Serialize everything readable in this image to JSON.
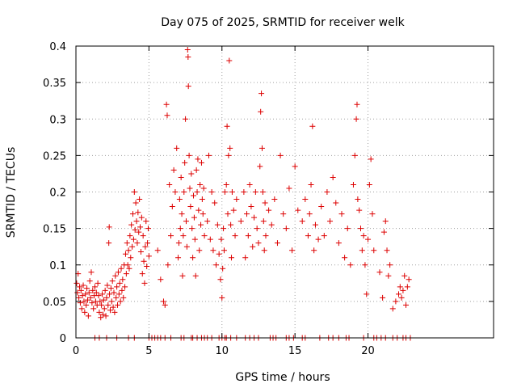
{
  "chart_data": {
    "type": "scatter",
    "title": "Day 075 of 2025, SRMTID for receiver welk",
    "xlabel": "GPS time / hours",
    "ylabel": "SRMTID / TECUs",
    "xlim": [
      0,
      28.6
    ],
    "ylim": [
      0,
      0.4
    ],
    "x_ticks": [
      0,
      5,
      10,
      15,
      20
    ],
    "x_tick_labels": [
      "0",
      "5",
      "10",
      "15",
      "20"
    ],
    "y_ticks": [
      0,
      0.05,
      0.1,
      0.15,
      0.2,
      0.25,
      0.3,
      0.35,
      0.4
    ],
    "y_tick_labels": [
      "0",
      "0.05",
      "0.1",
      "0.15",
      "0.2",
      "0.25",
      "0.3",
      "0.35",
      "0.4"
    ],
    "grid": true,
    "marker": "+",
    "series": [
      {
        "name": "SRMTID",
        "color": "#dd0000",
        "points": [
          [
            0.05,
            0.075
          ],
          [
            0.1,
            0.062
          ],
          [
            0.15,
            0.088
          ],
          [
            0.2,
            0.055
          ],
          [
            0.25,
            0.07
          ],
          [
            0.3,
            0.048
          ],
          [
            0.35,
            0.065
          ],
          [
            0.4,
            0.04
          ],
          [
            0.45,
            0.058
          ],
          [
            0.5,
            0.072
          ],
          [
            0.55,
            0.05
          ],
          [
            0.6,
            0.035
          ],
          [
            0.65,
            0.06
          ],
          [
            0.7,
            0.045
          ],
          [
            0.75,
            0.068
          ],
          [
            0.8,
            0.052
          ],
          [
            0.85,
            0.03
          ],
          [
            0.9,
            0.062
          ],
          [
            0.95,
            0.078
          ],
          [
            1.0,
            0.055
          ],
          [
            1.05,
            0.09
          ],
          [
            1.1,
            0.048
          ],
          [
            1.15,
            0.065
          ],
          [
            1.2,
            0.04
          ],
          [
            1.25,
            0.058
          ],
          [
            1.3,
            0.07
          ],
          [
            1.35,
            0.05
          ],
          [
            1.4,
            0.062
          ],
          [
            1.45,
            0.045
          ],
          [
            1.5,
            0.075
          ],
          [
            1.55,
            0.058
          ],
          [
            1.6,
            0.035
          ],
          [
            1.65,
            0.05
          ],
          [
            1.7,
            0.028
          ],
          [
            1.75,
            0.045
          ],
          [
            1.8,
            0.06
          ],
          [
            1.85,
            0.032
          ],
          [
            1.9,
            0.052
          ],
          [
            1.95,
            0.04
          ],
          [
            2.0,
            0.065
          ],
          [
            2.05,
            0.03
          ],
          [
            2.1,
            0.055
          ],
          [
            2.15,
            0.072
          ],
          [
            2.2,
            0.045
          ],
          [
            2.25,
            0.13
          ],
          [
            2.28,
            0.152
          ],
          [
            2.3,
            0.06
          ],
          [
            2.35,
            0.038
          ],
          [
            2.4,
            0.068
          ],
          [
            2.45,
            0.05
          ],
          [
            2.5,
            0.078
          ],
          [
            2.55,
            0.042
          ],
          [
            2.6,
            0.062
          ],
          [
            2.65,
            0.035
          ],
          [
            2.7,
            0.085
          ],
          [
            2.75,
            0.055
          ],
          [
            2.8,
            0.07
          ],
          [
            2.85,
            0.045
          ],
          [
            2.9,
            0.09
          ],
          [
            2.95,
            0.06
          ],
          [
            3.0,
            0.075
          ],
          [
            3.05,
            0.05
          ],
          [
            3.1,
            0.095
          ],
          [
            3.15,
            0.065
          ],
          [
            3.2,
            0.08
          ],
          [
            3.25,
            0.055
          ],
          [
            3.3,
            0.1
          ],
          [
            3.35,
            0.07
          ],
          [
            3.4,
            0.115
          ],
          [
            3.45,
            0.088
          ],
          [
            3.5,
            0.13
          ],
          [
            3.55,
            0.1
          ],
          [
            3.6,
            0.12
          ],
          [
            3.65,
            0.095
          ],
          [
            3.7,
            0.14
          ],
          [
            3.75,
            0.11
          ],
          [
            3.8,
            0.155
          ],
          [
            3.85,
            0.125
          ],
          [
            3.9,
            0.17
          ],
          [
            3.95,
            0.135
          ],
          [
            4.0,
            0.2
          ],
          [
            4.05,
            0.148
          ],
          [
            4.1,
            0.185
          ],
          [
            4.15,
            0.16
          ],
          [
            4.2,
            0.13
          ],
          [
            4.25,
            0.172
          ],
          [
            4.3,
            0.145
          ],
          [
            4.35,
            0.19
          ],
          [
            4.4,
            0.152
          ],
          [
            4.45,
            0.118
          ],
          [
            4.5,
            0.165
          ],
          [
            4.55,
            0.088
          ],
          [
            4.6,
            0.14
          ],
          [
            4.65,
            0.105
          ],
          [
            4.7,
            0.075
          ],
          [
            4.75,
            0.125
          ],
          [
            4.8,
            0.16
          ],
          [
            4.85,
            0.098
          ],
          [
            4.9,
            0.13
          ],
          [
            4.95,
            0.15
          ],
          [
            5.0,
            0.112
          ],
          [
            5.6,
            0.12
          ],
          [
            5.8,
            0.08
          ],
          [
            6.0,
            0.05
          ],
          [
            6.1,
            0.045
          ],
          [
            6.2,
            0.32
          ],
          [
            6.25,
            0.305
          ],
          [
            6.3,
            0.1
          ],
          [
            6.4,
            0.21
          ],
          [
            6.5,
            0.14
          ],
          [
            6.6,
            0.18
          ],
          [
            6.7,
            0.23
          ],
          [
            6.8,
            0.2
          ],
          [
            6.9,
            0.26
          ],
          [
            7.0,
            0.11
          ],
          [
            7.05,
            0.13
          ],
          [
            7.1,
            0.19
          ],
          [
            7.15,
            0.15
          ],
          [
            7.2,
            0.22
          ],
          [
            7.25,
            0.17
          ],
          [
            7.3,
            0.085
          ],
          [
            7.35,
            0.14
          ],
          [
            7.4,
            0.2
          ],
          [
            7.45,
            0.24
          ],
          [
            7.5,
            0.3
          ],
          [
            7.55,
            0.16
          ],
          [
            7.6,
            0.125
          ],
          [
            7.65,
            0.395
          ],
          [
            7.68,
            0.385
          ],
          [
            7.7,
            0.345
          ],
          [
            7.75,
            0.25
          ],
          [
            7.8,
            0.205
          ],
          [
            7.85,
            0.18
          ],
          [
            7.9,
            0.225
          ],
          [
            7.95,
            0.15
          ],
          [
            8.0,
            0.11
          ],
          [
            8.05,
            0.195
          ],
          [
            8.1,
            0.165
          ],
          [
            8.15,
            0.135
          ],
          [
            8.2,
            0.085
          ],
          [
            8.25,
            0.23
          ],
          [
            8.3,
            0.2
          ],
          [
            8.35,
            0.245
          ],
          [
            8.4,
            0.175
          ],
          [
            8.45,
            0.12
          ],
          [
            8.5,
            0.21
          ],
          [
            8.55,
            0.155
          ],
          [
            8.6,
            0.24
          ],
          [
            8.65,
            0.19
          ],
          [
            8.7,
            0.17
          ],
          [
            8.75,
            0.205
          ],
          [
            8.8,
            0.14
          ],
          [
            9.0,
            0.16
          ],
          [
            9.1,
            0.25
          ],
          [
            9.2,
            0.135
          ],
          [
            9.3,
            0.2
          ],
          [
            9.4,
            0.12
          ],
          [
            9.5,
            0.185
          ],
          [
            9.6,
            0.1
          ],
          [
            9.7,
            0.155
          ],
          [
            9.8,
            0.115
          ],
          [
            9.9,
            0.08
          ],
          [
            9.95,
            0.135
          ],
          [
            10.0,
            0.055
          ],
          [
            10.05,
            0.095
          ],
          [
            10.1,
            0.15
          ],
          [
            10.15,
            0.12
          ],
          [
            10.2,
            0.2
          ],
          [
            10.3,
            0.21
          ],
          [
            10.35,
            0.29
          ],
          [
            10.4,
            0.17
          ],
          [
            10.45,
            0.25
          ],
          [
            10.5,
            0.38
          ],
          [
            10.55,
            0.26
          ],
          [
            10.6,
            0.155
          ],
          [
            10.65,
            0.11
          ],
          [
            10.7,
            0.2
          ],
          [
            10.8,
            0.175
          ],
          [
            10.9,
            0.14
          ],
          [
            11.0,
            0.19
          ],
          [
            11.3,
            0.16
          ],
          [
            11.5,
            0.2
          ],
          [
            11.6,
            0.11
          ],
          [
            11.7,
            0.17
          ],
          [
            11.8,
            0.14
          ],
          [
            11.9,
            0.21
          ],
          [
            12.0,
            0.18
          ],
          [
            12.1,
            0.125
          ],
          [
            12.2,
            0.165
          ],
          [
            12.3,
            0.2
          ],
          [
            12.4,
            0.15
          ],
          [
            12.5,
            0.13
          ],
          [
            12.6,
            0.235
          ],
          [
            12.65,
            0.31
          ],
          [
            12.7,
            0.335
          ],
          [
            12.75,
            0.26
          ],
          [
            12.8,
            0.2
          ],
          [
            12.85,
            0.16
          ],
          [
            12.9,
            0.12
          ],
          [
            12.95,
            0.185
          ],
          [
            13.0,
            0.14
          ],
          [
            13.2,
            0.175
          ],
          [
            13.4,
            0.155
          ],
          [
            13.6,
            0.19
          ],
          [
            13.8,
            0.13
          ],
          [
            14.0,
            0.25
          ],
          [
            14.2,
            0.17
          ],
          [
            14.4,
            0.15
          ],
          [
            14.6,
            0.205
          ],
          [
            14.8,
            0.12
          ],
          [
            15.0,
            0.235
          ],
          [
            15.2,
            0.175
          ],
          [
            15.5,
            0.16
          ],
          [
            15.7,
            0.19
          ],
          [
            15.9,
            0.14
          ],
          [
            16.0,
            0.17
          ],
          [
            16.1,
            0.21
          ],
          [
            16.2,
            0.29
          ],
          [
            16.3,
            0.12
          ],
          [
            16.4,
            0.155
          ],
          [
            16.6,
            0.135
          ],
          [
            16.8,
            0.18
          ],
          [
            17.0,
            0.14
          ],
          [
            17.2,
            0.2
          ],
          [
            17.4,
            0.16
          ],
          [
            17.6,
            0.22
          ],
          [
            17.8,
            0.185
          ],
          [
            18.0,
            0.13
          ],
          [
            18.2,
            0.17
          ],
          [
            18.4,
            0.11
          ],
          [
            18.6,
            0.15
          ],
          [
            18.8,
            0.1
          ],
          [
            19.0,
            0.21
          ],
          [
            19.1,
            0.25
          ],
          [
            19.2,
            0.3
          ],
          [
            19.25,
            0.32
          ],
          [
            19.3,
            0.19
          ],
          [
            19.4,
            0.175
          ],
          [
            19.5,
            0.15
          ],
          [
            19.6,
            0.12
          ],
          [
            19.7,
            0.14
          ],
          [
            19.8,
            0.1
          ],
          [
            19.9,
            0.06
          ],
          [
            20.0,
            0.135
          ],
          [
            20.1,
            0.21
          ],
          [
            20.2,
            0.245
          ],
          [
            20.3,
            0.17
          ],
          [
            20.4,
            0.12
          ],
          [
            20.8,
            0.09
          ],
          [
            21.0,
            0.055
          ],
          [
            21.1,
            0.145
          ],
          [
            21.2,
            0.16
          ],
          [
            21.3,
            0.12
          ],
          [
            21.4,
            0.085
          ],
          [
            21.5,
            0.1
          ],
          [
            21.7,
            0.04
          ],
          [
            21.9,
            0.05
          ],
          [
            22.1,
            0.06
          ],
          [
            22.2,
            0.07
          ],
          [
            22.3,
            0.055
          ],
          [
            22.4,
            0.065
          ],
          [
            22.5,
            0.085
          ],
          [
            22.6,
            0.045
          ],
          [
            22.7,
            0.07
          ],
          [
            22.8,
            0.08
          ],
          [
            1.3,
            0
          ],
          [
            1.6,
            0
          ],
          [
            2.1,
            0
          ],
          [
            2.8,
            0
          ],
          [
            3.6,
            0
          ],
          [
            4.0,
            0
          ],
          [
            5.0,
            0
          ],
          [
            5.2,
            0
          ],
          [
            5.4,
            0
          ],
          [
            5.6,
            0
          ],
          [
            5.8,
            0
          ],
          [
            6.1,
            0
          ],
          [
            6.5,
            0
          ],
          [
            7.2,
            0
          ],
          [
            7.4,
            0
          ],
          [
            7.9,
            0
          ],
          [
            8.0,
            0
          ],
          [
            8.3,
            0
          ],
          [
            8.6,
            0
          ],
          [
            8.8,
            0
          ],
          [
            9.0,
            0
          ],
          [
            9.3,
            0
          ],
          [
            9.8,
            0
          ],
          [
            10.0,
            0
          ],
          [
            10.2,
            0
          ],
          [
            10.3,
            0
          ],
          [
            10.6,
            0
          ],
          [
            11.0,
            0
          ],
          [
            11.6,
            0
          ],
          [
            11.9,
            0
          ],
          [
            12.2,
            0
          ],
          [
            12.5,
            0
          ],
          [
            13.3,
            0
          ],
          [
            13.5,
            0
          ],
          [
            13.7,
            0
          ],
          [
            14.4,
            0
          ],
          [
            14.6,
            0
          ],
          [
            14.9,
            0
          ],
          [
            15.5,
            0
          ],
          [
            15.7,
            0
          ],
          [
            16.7,
            0
          ],
          [
            17.3,
            0
          ],
          [
            17.6,
            0
          ],
          [
            18.0,
            0
          ],
          [
            18.5,
            0
          ],
          [
            18.7,
            0
          ],
          [
            19.7,
            0
          ],
          [
            20.4,
            0
          ],
          [
            20.6,
            0
          ],
          [
            20.9,
            0
          ],
          [
            21.2,
            0
          ],
          [
            21.7,
            0
          ],
          [
            22.0,
            0
          ],
          [
            22.4,
            0
          ],
          [
            22.6,
            0
          ],
          [
            22.9,
            0
          ]
        ]
      }
    ]
  }
}
